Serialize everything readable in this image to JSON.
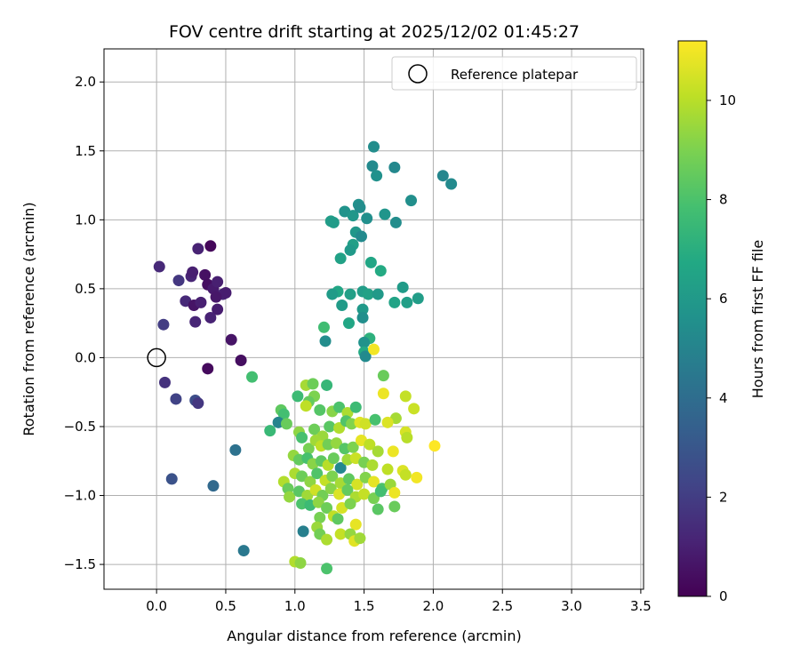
{
  "chart_data": {
    "type": "scatter",
    "title": "FOV centre drift starting at 2025/12/02 01:45:27",
    "xlabel": "Angular distance from reference (arcmin)",
    "ylabel": "Rotation from reference (arcmin)",
    "colorbar_label": "Hours from first FF file",
    "xlim": [
      -0.38,
      3.52
    ],
    "ylim": [
      -1.68,
      2.24
    ],
    "clim": [
      0,
      11.2
    ],
    "xticks": [
      0.0,
      0.5,
      1.0,
      1.5,
      2.0,
      2.5,
      3.0,
      3.5
    ],
    "xtick_labels": [
      "0.0",
      "0.5",
      "1.0",
      "1.5",
      "2.0",
      "2.5",
      "3.0",
      "3.5"
    ],
    "yticks": [
      -1.5,
      -1.0,
      -0.5,
      0.0,
      0.5,
      1.0,
      1.5,
      2.0
    ],
    "ytick_labels": [
      "−1.5",
      "−1.0",
      "−0.5",
      "0.0",
      "0.5",
      "1.0",
      "1.5",
      "2.0"
    ],
    "cticks": [
      0,
      2,
      4,
      6,
      8,
      10
    ],
    "ctick_labels": [
      "0",
      "2",
      "4",
      "6",
      "8",
      "10"
    ],
    "grid": true,
    "legend": {
      "position": "top-right",
      "label": "Reference platepar"
    },
    "reference_point": {
      "x": 0.0,
      "y": 0.0
    },
    "points": [
      {
        "x": 0.02,
        "y": 0.66,
        "h": 1.3
      },
      {
        "x": 0.16,
        "y": 0.56,
        "h": 1.8
      },
      {
        "x": 0.25,
        "y": 0.59,
        "h": 1.2
      },
      {
        "x": 0.26,
        "y": 0.62,
        "h": 1.0
      },
      {
        "x": 0.3,
        "y": 0.79,
        "h": 1.1
      },
      {
        "x": 0.39,
        "y": 0.81,
        "h": 0.2
      },
      {
        "x": 0.35,
        "y": 0.6,
        "h": 0.5
      },
      {
        "x": 0.37,
        "y": 0.53,
        "h": 0.4
      },
      {
        "x": 0.41,
        "y": 0.5,
        "h": 0.8
      },
      {
        "x": 0.44,
        "y": 0.55,
        "h": 1.0
      },
      {
        "x": 0.48,
        "y": 0.46,
        "h": 1.2
      },
      {
        "x": 0.5,
        "y": 0.47,
        "h": 0.9
      },
      {
        "x": 0.43,
        "y": 0.44,
        "h": 0.7
      },
      {
        "x": 0.21,
        "y": 0.41,
        "h": 1.3
      },
      {
        "x": 0.27,
        "y": 0.38,
        "h": 0.6
      },
      {
        "x": 0.32,
        "y": 0.4,
        "h": 1.0
      },
      {
        "x": 0.44,
        "y": 0.35,
        "h": 0.9
      },
      {
        "x": 0.39,
        "y": 0.29,
        "h": 1.1
      },
      {
        "x": 0.28,
        "y": 0.26,
        "h": 1.2
      },
      {
        "x": 0.05,
        "y": 0.24,
        "h": 2.0
      },
      {
        "x": 0.54,
        "y": 0.13,
        "h": 0.6
      },
      {
        "x": 0.61,
        "y": -0.02,
        "h": 0.4
      },
      {
        "x": 0.37,
        "y": -0.08,
        "h": 0.3
      },
      {
        "x": 0.06,
        "y": -0.18,
        "h": 1.6
      },
      {
        "x": 0.14,
        "y": -0.3,
        "h": 2.2
      },
      {
        "x": 0.28,
        "y": -0.31,
        "h": 2.6
      },
      {
        "x": 0.3,
        "y": -0.33,
        "h": 1.8
      },
      {
        "x": 0.11,
        "y": -0.88,
        "h": 2.8
      },
      {
        "x": 0.41,
        "y": -0.93,
        "h": 3.8
      },
      {
        "x": 0.57,
        "y": -0.67,
        "h": 4.2
      },
      {
        "x": 0.63,
        "y": -1.4,
        "h": 4.5
      },
      {
        "x": 0.69,
        "y": -0.14,
        "h": 7.8
      },
      {
        "x": 1.57,
        "y": 1.53,
        "h": 5.4
      },
      {
        "x": 1.56,
        "y": 1.39,
        "h": 5.3
      },
      {
        "x": 1.59,
        "y": 1.32,
        "h": 5.6
      },
      {
        "x": 1.72,
        "y": 1.38,
        "h": 5.2
      },
      {
        "x": 1.84,
        "y": 1.14,
        "h": 5.5
      },
      {
        "x": 2.07,
        "y": 1.32,
        "h": 5.1
      },
      {
        "x": 2.13,
        "y": 1.26,
        "h": 5.3
      },
      {
        "x": 1.36,
        "y": 1.06,
        "h": 5.7
      },
      {
        "x": 1.42,
        "y": 1.03,
        "h": 5.9
      },
      {
        "x": 1.46,
        "y": 1.11,
        "h": 5.6
      },
      {
        "x": 1.47,
        "y": 1.09,
        "h": 5.4
      },
      {
        "x": 1.52,
        "y": 1.01,
        "h": 5.5
      },
      {
        "x": 1.65,
        "y": 1.04,
        "h": 5.8
      },
      {
        "x": 1.73,
        "y": 0.98,
        "h": 5.4
      },
      {
        "x": 1.26,
        "y": 0.99,
        "h": 6.2
      },
      {
        "x": 1.28,
        "y": 0.98,
        "h": 6.1
      },
      {
        "x": 1.44,
        "y": 0.91,
        "h": 5.9
      },
      {
        "x": 1.48,
        "y": 0.88,
        "h": 5.3
      },
      {
        "x": 1.42,
        "y": 0.82,
        "h": 6.3
      },
      {
        "x": 1.4,
        "y": 0.78,
        "h": 6.0
      },
      {
        "x": 1.33,
        "y": 0.72,
        "h": 6.4
      },
      {
        "x": 1.55,
        "y": 0.69,
        "h": 6.6
      },
      {
        "x": 1.62,
        "y": 0.63,
        "h": 6.8
      },
      {
        "x": 1.31,
        "y": 0.48,
        "h": 6.6
      },
      {
        "x": 1.27,
        "y": 0.46,
        "h": 6.1
      },
      {
        "x": 1.4,
        "y": 0.46,
        "h": 6.3
      },
      {
        "x": 1.49,
        "y": 0.48,
        "h": 6.2
      },
      {
        "x": 1.53,
        "y": 0.46,
        "h": 6.4
      },
      {
        "x": 1.6,
        "y": 0.46,
        "h": 6.0
      },
      {
        "x": 1.78,
        "y": 0.51,
        "h": 6.1
      },
      {
        "x": 1.81,
        "y": 0.4,
        "h": 6.3
      },
      {
        "x": 1.89,
        "y": 0.43,
        "h": 6.2
      },
      {
        "x": 1.72,
        "y": 0.4,
        "h": 6.5
      },
      {
        "x": 1.34,
        "y": 0.38,
        "h": 6.1
      },
      {
        "x": 1.49,
        "y": 0.35,
        "h": 6.0
      },
      {
        "x": 1.49,
        "y": 0.29,
        "h": 5.5
      },
      {
        "x": 1.39,
        "y": 0.25,
        "h": 6.6
      },
      {
        "x": 1.21,
        "y": 0.22,
        "h": 7.7
      },
      {
        "x": 1.22,
        "y": 0.12,
        "h": 5.4
      },
      {
        "x": 1.54,
        "y": 0.14,
        "h": 7.1
      },
      {
        "x": 1.5,
        "y": 0.11,
        "h": 5.7
      },
      {
        "x": 1.5,
        "y": 0.04,
        "h": 6.8
      },
      {
        "x": 1.51,
        "y": 0.01,
        "h": 5.3
      },
      {
        "x": 1.57,
        "y": 0.06,
        "h": 11.0
      },
      {
        "x": 1.08,
        "y": -0.2,
        "h": 9.7
      },
      {
        "x": 1.13,
        "y": -0.19,
        "h": 8.7
      },
      {
        "x": 1.23,
        "y": -0.2,
        "h": 7.4
      },
      {
        "x": 1.02,
        "y": -0.28,
        "h": 7.6
      },
      {
        "x": 1.14,
        "y": -0.28,
        "h": 9.0
      },
      {
        "x": 1.1,
        "y": -0.32,
        "h": 8.5
      },
      {
        "x": 1.08,
        "y": -0.35,
        "h": 10.1
      },
      {
        "x": 1.18,
        "y": -0.38,
        "h": 8.2
      },
      {
        "x": 1.27,
        "y": -0.39,
        "h": 9.2
      },
      {
        "x": 1.32,
        "y": -0.36,
        "h": 8.0
      },
      {
        "x": 1.38,
        "y": -0.4,
        "h": 9.8
      },
      {
        "x": 1.44,
        "y": -0.36,
        "h": 7.6
      },
      {
        "x": 0.9,
        "y": -0.38,
        "h": 8.4
      },
      {
        "x": 0.92,
        "y": -0.41,
        "h": 7.8
      },
      {
        "x": 0.88,
        "y": -0.47,
        "h": 5.0
      },
      {
        "x": 0.94,
        "y": -0.48,
        "h": 8.6
      },
      {
        "x": 0.82,
        "y": -0.53,
        "h": 7.5
      },
      {
        "x": 1.03,
        "y": -0.54,
        "h": 9.3
      },
      {
        "x": 1.05,
        "y": -0.58,
        "h": 7.9
      },
      {
        "x": 1.14,
        "y": -0.52,
        "h": 8.7
      },
      {
        "x": 1.2,
        "y": -0.57,
        "h": 9.5
      },
      {
        "x": 1.25,
        "y": -0.5,
        "h": 8.3
      },
      {
        "x": 1.32,
        "y": -0.51,
        "h": 9.9
      },
      {
        "x": 1.37,
        "y": -0.46,
        "h": 8.1
      },
      {
        "x": 1.41,
        "y": -0.48,
        "h": 9.1
      },
      {
        "x": 1.47,
        "y": -0.47,
        "h": 10.7
      },
      {
        "x": 1.51,
        "y": -0.48,
        "h": 10.4
      },
      {
        "x": 1.58,
        "y": -0.45,
        "h": 7.9
      },
      {
        "x": 1.64,
        "y": -0.26,
        "h": 10.9
      },
      {
        "x": 1.64,
        "y": -0.13,
        "h": 8.6
      },
      {
        "x": 1.73,
        "y": -0.44,
        "h": 9.7
      },
      {
        "x": 1.67,
        "y": -0.47,
        "h": 10.6
      },
      {
        "x": 1.8,
        "y": -0.28,
        "h": 10.2
      },
      {
        "x": 1.86,
        "y": -0.37,
        "h": 10.3
      },
      {
        "x": 1.8,
        "y": -0.54,
        "h": 10.5
      },
      {
        "x": 1.81,
        "y": -0.58,
        "h": 10.0
      },
      {
        "x": 2.01,
        "y": -0.64,
        "h": 11.2
      },
      {
        "x": 1.1,
        "y": -0.66,
        "h": 8.9
      },
      {
        "x": 1.15,
        "y": -0.6,
        "h": 9.6
      },
      {
        "x": 1.19,
        "y": -0.64,
        "h": 10.1
      },
      {
        "x": 1.24,
        "y": -0.63,
        "h": 8.8
      },
      {
        "x": 1.3,
        "y": -0.62,
        "h": 9.4
      },
      {
        "x": 1.36,
        "y": -0.66,
        "h": 8.2
      },
      {
        "x": 1.42,
        "y": -0.65,
        "h": 9.0
      },
      {
        "x": 1.48,
        "y": -0.6,
        "h": 10.8
      },
      {
        "x": 1.54,
        "y": -0.63,
        "h": 10.1
      },
      {
        "x": 1.6,
        "y": -0.68,
        "h": 9.7
      },
      {
        "x": 1.71,
        "y": -0.68,
        "h": 10.9
      },
      {
        "x": 0.99,
        "y": -0.71,
        "h": 9.4
      },
      {
        "x": 1.03,
        "y": -0.74,
        "h": 8.5
      },
      {
        "x": 1.09,
        "y": -0.73,
        "h": 7.9
      },
      {
        "x": 1.13,
        "y": -0.77,
        "h": 9.2
      },
      {
        "x": 1.19,
        "y": -0.75,
        "h": 8.4
      },
      {
        "x": 1.24,
        "y": -0.78,
        "h": 10.0
      },
      {
        "x": 1.28,
        "y": -0.73,
        "h": 8.6
      },
      {
        "x": 1.33,
        "y": -0.8,
        "h": 5.2
      },
      {
        "x": 1.38,
        "y": -0.74,
        "h": 9.6
      },
      {
        "x": 1.44,
        "y": -0.73,
        "h": 10.3
      },
      {
        "x": 1.5,
        "y": -0.76,
        "h": 8.9
      },
      {
        "x": 1.56,
        "y": -0.78,
        "h": 9.8
      },
      {
        "x": 1.67,
        "y": -0.81,
        "h": 10.1
      },
      {
        "x": 1.78,
        "y": -0.82,
        "h": 10.6
      },
      {
        "x": 1.8,
        "y": -0.85,
        "h": 10.2
      },
      {
        "x": 1.88,
        "y": -0.87,
        "h": 11.0
      },
      {
        "x": 1.0,
        "y": -0.84,
        "h": 9.8
      },
      {
        "x": 1.05,
        "y": -0.86,
        "h": 8.7
      },
      {
        "x": 1.11,
        "y": -0.9,
        "h": 9.3
      },
      {
        "x": 1.16,
        "y": -0.84,
        "h": 8.1
      },
      {
        "x": 1.22,
        "y": -0.89,
        "h": 10.2
      },
      {
        "x": 1.27,
        "y": -0.86,
        "h": 9.0
      },
      {
        "x": 1.33,
        "y": -0.91,
        "h": 9.7
      },
      {
        "x": 1.39,
        "y": -0.88,
        "h": 8.4
      },
      {
        "x": 1.45,
        "y": -0.92,
        "h": 10.5
      },
      {
        "x": 1.51,
        "y": -0.87,
        "h": 9.1
      },
      {
        "x": 1.57,
        "y": -0.9,
        "h": 10.8
      },
      {
        "x": 1.63,
        "y": -0.95,
        "h": 8.0
      },
      {
        "x": 1.69,
        "y": -0.92,
        "h": 9.5
      },
      {
        "x": 0.92,
        "y": -0.9,
        "h": 9.9
      },
      {
        "x": 0.95,
        "y": -0.95,
        "h": 8.6
      },
      {
        "x": 0.96,
        "y": -1.01,
        "h": 9.4
      },
      {
        "x": 1.03,
        "y": -0.97,
        "h": 8.3
      },
      {
        "x": 1.09,
        "y": -1.0,
        "h": 9.6
      },
      {
        "x": 1.15,
        "y": -0.96,
        "h": 10.4
      },
      {
        "x": 1.2,
        "y": -1.0,
        "h": 8.8
      },
      {
        "x": 1.26,
        "y": -0.95,
        "h": 9.2
      },
      {
        "x": 1.32,
        "y": -0.99,
        "h": 10.6
      },
      {
        "x": 1.38,
        "y": -0.96,
        "h": 8.5
      },
      {
        "x": 1.44,
        "y": -1.01,
        "h": 9.8
      },
      {
        "x": 1.5,
        "y": -0.99,
        "h": 10.2
      },
      {
        "x": 1.57,
        "y": -1.02,
        "h": 8.9
      },
      {
        "x": 1.62,
        "y": -0.97,
        "h": 7.8
      },
      {
        "x": 1.72,
        "y": -0.98,
        "h": 10.9
      },
      {
        "x": 1.05,
        "y": -1.06,
        "h": 8.0
      },
      {
        "x": 1.11,
        "y": -1.07,
        "h": 7.6
      },
      {
        "x": 1.17,
        "y": -1.05,
        "h": 9.3
      },
      {
        "x": 1.23,
        "y": -1.09,
        "h": 8.7
      },
      {
        "x": 1.34,
        "y": -1.09,
        "h": 10.5
      },
      {
        "x": 1.4,
        "y": -1.06,
        "h": 9.0
      },
      {
        "x": 1.6,
        "y": -1.1,
        "h": 8.3
      },
      {
        "x": 1.72,
        "y": -1.08,
        "h": 8.6
      },
      {
        "x": 1.18,
        "y": -1.16,
        "h": 8.9
      },
      {
        "x": 1.28,
        "y": -1.15,
        "h": 10.1
      },
      {
        "x": 1.31,
        "y": -1.17,
        "h": 8.4
      },
      {
        "x": 1.44,
        "y": -1.21,
        "h": 10.8
      },
      {
        "x": 1.06,
        "y": -1.26,
        "h": 4.8
      },
      {
        "x": 1.16,
        "y": -1.23,
        "h": 9.5
      },
      {
        "x": 1.18,
        "y": -1.28,
        "h": 8.8
      },
      {
        "x": 1.23,
        "y": -1.32,
        "h": 9.8
      },
      {
        "x": 1.33,
        "y": -1.28,
        "h": 10.2
      },
      {
        "x": 1.4,
        "y": -1.28,
        "h": 9.4
      },
      {
        "x": 1.43,
        "y": -1.33,
        "h": 10.7
      },
      {
        "x": 1.47,
        "y": -1.31,
        "h": 9.6
      },
      {
        "x": 1.0,
        "y": -1.48,
        "h": 9.9
      },
      {
        "x": 1.04,
        "y": -1.49,
        "h": 9.3
      },
      {
        "x": 1.23,
        "y": -1.53,
        "h": 8.0
      }
    ]
  }
}
